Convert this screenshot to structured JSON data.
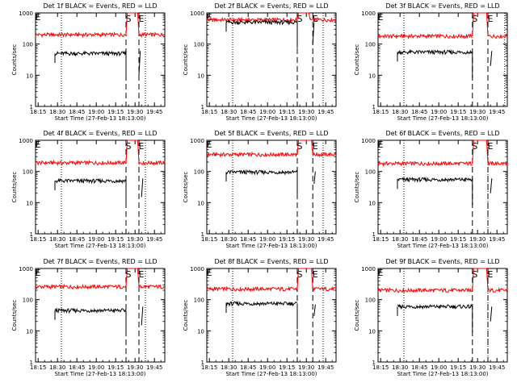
{
  "chart_data": [
    {
      "type": "line",
      "title": "Det 1f BLACK = Events, RED = LLD",
      "xlabel": "Start Time (27-Feb-13 18:13:00)",
      "ylabel": "Counts/sec",
      "x_ticks": [
        "18:15",
        "18:30",
        "18:45",
        "19:00",
        "19:15",
        "19:30",
        "19:45"
      ],
      "y_ticks": [
        "1",
        "10",
        "100",
        "1000"
      ],
      "ylim": [
        1,
        1000
      ],
      "yscale": "log",
      "xlim_minutes": [
        0,
        100
      ],
      "grid": false,
      "markers": [
        "S",
        "E"
      ],
      "series": [
        {
          "color": "#ff0000",
          "level": 200,
          "segments": [
            [
              0,
              70
            ],
            [
              80,
              100
            ]
          ],
          "peak": 1000
        },
        {
          "color": "#000000",
          "level": 50,
          "segments": [
            [
              15,
              70
            ]
          ],
          "after_mark": [
            80,
            10,
            60
          ]
        }
      ],
      "dotted_x": [
        20,
        85
      ],
      "dashed_x": [
        70,
        80
      ]
    },
    {
      "type": "line",
      "title": "Det 2f BLACK = Events, RED = LLD",
      "xlabel": "Start Time (27-Feb-13 18:13:00)",
      "ylabel": "Counts/sec",
      "x_ticks": [
        "18:15",
        "18:30",
        "18:45",
        "19:00",
        "19:15",
        "19:30",
        "19:45"
      ],
      "y_ticks": [
        "1",
        "10",
        "100",
        "1000"
      ],
      "ylim": [
        1,
        1000
      ],
      "yscale": "log",
      "xlim_minutes": [
        0,
        100
      ],
      "grid": false,
      "markers": [
        "S",
        "E"
      ],
      "series": [
        {
          "color": "#ff0000",
          "level": 600,
          "segments": [
            [
              0,
              70
            ],
            [
              80,
              100
            ]
          ],
          "peak": 1000
        },
        {
          "color": "#000000",
          "level": 500,
          "segments": [
            [
              15,
              70
            ]
          ],
          "after_mark": [
            82,
            100,
            500
          ]
        }
      ],
      "dotted_x": [
        20,
        90
      ],
      "dashed_x": [
        70,
        82
      ]
    },
    {
      "type": "line",
      "title": "Det 3f BLACK = Events, RED = LLD",
      "xlabel": "Start Time (27-Feb-13 18:13:00)",
      "ylabel": "Counts/sec",
      "x_ticks": [
        "18:15",
        "18:30",
        "18:45",
        "19:00",
        "19:15",
        "19:30",
        "19:45"
      ],
      "y_ticks": [
        "1",
        "10",
        "100",
        "1000"
      ],
      "ylim": [
        1,
        1000
      ],
      "yscale": "log",
      "xlim_minutes": [
        0,
        100
      ],
      "grid": false,
      "markers": [
        "S",
        "E"
      ],
      "series": [
        {
          "color": "#ff0000",
          "level": 180,
          "segments": [
            [
              0,
              73
            ],
            [
              85,
              100
            ]
          ],
          "peak": 1000
        },
        {
          "color": "#000000",
          "level": 55,
          "segments": [
            [
              15,
              73
            ]
          ],
          "after_mark": [
            87,
            20,
            60
          ]
        }
      ],
      "dotted_x": [
        20,
        98
      ],
      "dashed_x": [
        73,
        85
      ]
    },
    {
      "type": "line",
      "title": "Det 4f BLACK = Events, RED = LLD",
      "xlabel": "Start Time (27-Feb-13 18:13:00)",
      "ylabel": "Counts/sec",
      "x_ticks": [
        "18:15",
        "18:30",
        "18:45",
        "19:00",
        "19:15",
        "19:30",
        "19:45"
      ],
      "y_ticks": [
        "1",
        "10",
        "100",
        "1000"
      ],
      "ylim": [
        1,
        1000
      ],
      "yscale": "log",
      "xlim_minutes": [
        0,
        100
      ],
      "grid": false,
      "markers": [
        "S",
        "E"
      ],
      "series": [
        {
          "color": "#ff0000",
          "level": 190,
          "segments": [
            [
              0,
              70
            ],
            [
              80,
              100
            ]
          ],
          "peak": 1000
        },
        {
          "color": "#000000",
          "level": 50,
          "segments": [
            [
              15,
              70
            ]
          ],
          "after_mark": [
            82,
            15,
            60
          ]
        }
      ],
      "dotted_x": [
        20,
        85
      ],
      "dashed_x": [
        70,
        80
      ]
    },
    {
      "type": "line",
      "title": "Det 5f BLACK = Events, RED = LLD",
      "xlabel": "Start Time (27-Feb-13 18:13:00)",
      "ylabel": "Counts/sec",
      "x_ticks": [
        "18:15",
        "18:30",
        "18:45",
        "19:00",
        "19:15",
        "19:30",
        "19:45"
      ],
      "y_ticks": [
        "1",
        "10",
        "100",
        "1000"
      ],
      "ylim": [
        1,
        1000
      ],
      "yscale": "log",
      "xlim_minutes": [
        0,
        100
      ],
      "grid": false,
      "markers": [
        "S",
        "E"
      ],
      "series": [
        {
          "color": "#ff0000",
          "level": 350,
          "segments": [
            [
              0,
              70
            ],
            [
              82,
              100
            ]
          ],
          "peak": 1000
        },
        {
          "color": "#000000",
          "level": 95,
          "segments": [
            [
              15,
              70
            ]
          ],
          "after_mark": [
            83,
            40,
            100
          ]
        }
      ],
      "dotted_x": [
        20,
        90
      ],
      "dashed_x": [
        70,
        82
      ]
    },
    {
      "type": "line",
      "title": "Det 6f BLACK = Events, RED = LLD",
      "xlabel": "Start Time (27-Feb-13 18:13:00)",
      "ylabel": "Counts/sec",
      "x_ticks": [
        "18:15",
        "18:30",
        "18:45",
        "19:00",
        "19:15",
        "19:30",
        "19:45"
      ],
      "y_ticks": [
        "1",
        "10",
        "100",
        "1000"
      ],
      "ylim": [
        1,
        1000
      ],
      "yscale": "log",
      "xlim_minutes": [
        0,
        100
      ],
      "grid": false,
      "markers": [
        "S",
        "E"
      ],
      "series": [
        {
          "color": "#ff0000",
          "level": 180,
          "segments": [
            [
              0,
              73
            ],
            [
              85,
              100
            ]
          ],
          "peak": 1000
        },
        {
          "color": "#000000",
          "level": 55,
          "segments": [
            [
              15,
              73
            ]
          ],
          "after_mark": [
            87,
            20,
            60
          ]
        }
      ],
      "dotted_x": [
        20,
        85
      ],
      "dashed_x": [
        73,
        85
      ]
    },
    {
      "type": "line",
      "title": "Det 7f BLACK = Events, RED = LLD",
      "xlabel": "Start Time (27-Feb-13 18:13:00)",
      "ylabel": "Counts/sec",
      "x_ticks": [
        "18:15",
        "18:30",
        "18:45",
        "19:00",
        "19:15",
        "19:30",
        "19:45"
      ],
      "y_ticks": [
        "1",
        "10",
        "100",
        "1000"
      ],
      "ylim": [
        1,
        1000
      ],
      "yscale": "log",
      "xlim_minutes": [
        0,
        100
      ],
      "grid": false,
      "markers": [
        "S",
        "E"
      ],
      "series": [
        {
          "color": "#ff0000",
          "level": 260,
          "segments": [
            [
              0,
              70
            ],
            [
              80,
              100
            ]
          ],
          "peak": 1000
        },
        {
          "color": "#000000",
          "level": 45,
          "segments": [
            [
              15,
              70
            ]
          ],
          "after_mark": [
            82,
            15,
            60
          ]
        }
      ],
      "dotted_x": [
        20,
        85
      ],
      "dashed_x": [
        70,
        80
      ]
    },
    {
      "type": "line",
      "title": "Det 8f BLACK = Events, RED = LLD",
      "xlabel": "Start Time (27-Feb-13 18:13:00)",
      "ylabel": "Counts/sec",
      "x_ticks": [
        "18:15",
        "18:30",
        "18:45",
        "19:00",
        "19:15",
        "19:30",
        "19:45"
      ],
      "y_ticks": [
        "1",
        "10",
        "100",
        "1000"
      ],
      "ylim": [
        1,
        1000
      ],
      "yscale": "log",
      "xlim_minutes": [
        0,
        100
      ],
      "grid": false,
      "markers": [
        "S",
        "E"
      ],
      "series": [
        {
          "color": "#ff0000",
          "level": 220,
          "segments": [
            [
              0,
              70
            ],
            [
              82,
              100
            ]
          ],
          "peak": 1000
        },
        {
          "color": "#000000",
          "level": 75,
          "segments": [
            [
              15,
              70
            ]
          ],
          "after_mark": [
            83,
            30,
            70
          ]
        }
      ],
      "dotted_x": [
        20,
        90
      ],
      "dashed_x": [
        70,
        82
      ]
    },
    {
      "type": "line",
      "title": "Det 9f BLACK = Events, RED = LLD",
      "xlabel": "Start Time (27-Feb-13 18:13:00)",
      "ylabel": "Counts/sec",
      "x_ticks": [
        "18:15",
        "18:30",
        "18:45",
        "19:00",
        "19:15",
        "19:30",
        "19:45"
      ],
      "y_ticks": [
        "1",
        "10",
        "100",
        "1000"
      ],
      "ylim": [
        1,
        1000
      ],
      "yscale": "log",
      "xlim_minutes": [
        0,
        100
      ],
      "grid": false,
      "markers": [
        "S",
        "E"
      ],
      "series": [
        {
          "color": "#ff0000",
          "level": 200,
          "segments": [
            [
              0,
              73
            ],
            [
              85,
              100
            ]
          ],
          "peak": 1000
        },
        {
          "color": "#000000",
          "level": 60,
          "segments": [
            [
              15,
              73
            ]
          ],
          "after_mark": [
            87,
            20,
            60
          ]
        }
      ],
      "dotted_x": [
        20,
        85
      ],
      "dashed_x": [
        73,
        85
      ]
    }
  ]
}
